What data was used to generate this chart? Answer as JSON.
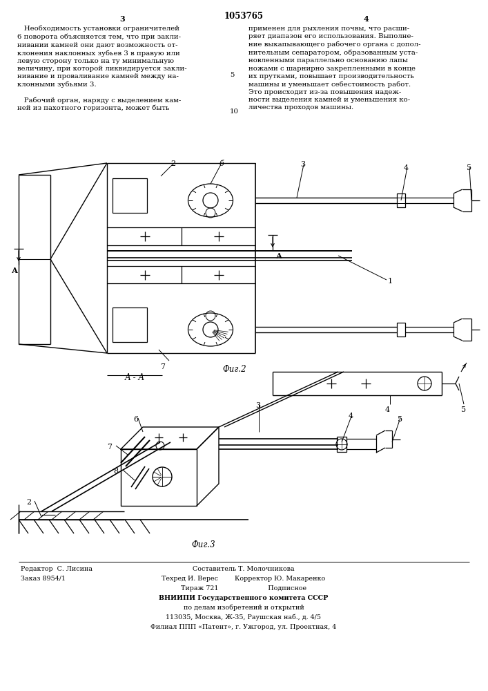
{
  "page_number_left": "3",
  "page_number_right": "4",
  "patent_number": "1053765",
  "fig2_label": "Фиг.2",
  "fig3_label": "Фиг.3",
  "aa_label": "А - А",
  "footer_left1": "Редактор  С. Лисина",
  "footer_left2": "Заказ 8954/1",
  "footer_center1": "Составитель Т. Молочникова",
  "footer_center2": "Техред И. Верес        Корректор Ю. Макаренко",
  "footer_center3": "Тираж 721                        Подписное",
  "footer_center4": "ВНИИПИ Государственного комитета СССР",
  "footer_center5": "по делам изобретений и открытий",
  "footer_center6": "113035, Москва, Ж-35, Раушская наб., д. 4/5",
  "footer_center7": "Филиал ППП «Патент», г. Ужгород, ул. Проектная, 4",
  "bg_color": "#ffffff"
}
